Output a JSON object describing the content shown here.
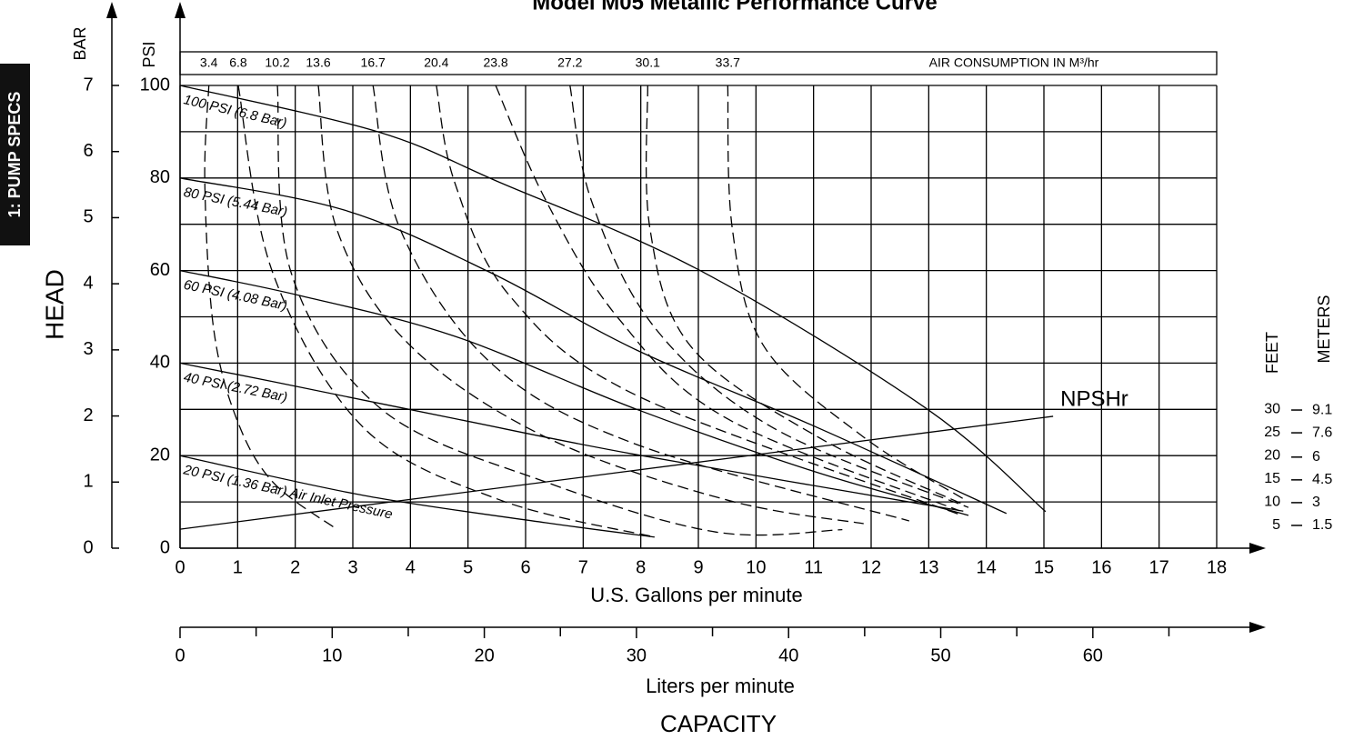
{
  "chart_data": {
    "type": "line",
    "title": "Model M05 Metallic Performance Curve",
    "tab_label": "1: PUMP SPECS",
    "x_label": "U.S. Gallons per minute",
    "x2_label": "Liters per minute",
    "capacity_label": "CAPACITY",
    "y_label": "HEAD",
    "y_axis_name": "PSI",
    "y2_axis_name": "BAR",
    "y3_axis_name": "FEET",
    "y4_axis_name": "METERS",
    "air_label": "AIR CONSUMPTION IN M³/hr",
    "xlim": [
      0,
      18
    ],
    "xticks": [
      0,
      1,
      2,
      3,
      4,
      5,
      6,
      7,
      8,
      9,
      10,
      11,
      12,
      13,
      14,
      15,
      16,
      17,
      18
    ],
    "ylim": [
      0,
      100
    ],
    "yticks": [
      0,
      20,
      40,
      60,
      80,
      100
    ],
    "yminor": [
      10,
      30,
      50,
      70,
      90
    ],
    "y2lim": [
      0,
      7
    ],
    "y2ticks": [
      0,
      1,
      2,
      3,
      4,
      5,
      6,
      7
    ],
    "x2lim": [
      0,
      68.14
    ],
    "x2ticks": [
      0,
      10,
      20,
      30,
      40,
      50,
      60
    ],
    "x2minor": [
      5,
      15,
      25,
      35,
      45,
      55,
      65
    ],
    "y3lim": [
      0,
      100
    ],
    "y3ticks": [
      5,
      10,
      15,
      20,
      25,
      30
    ],
    "y4lim": [
      0,
      30.48
    ],
    "y4ticks": [
      1.5,
      3,
      4.5,
      6,
      7.6,
      9.1
    ],
    "grid": true,
    "series": [
      {
        "name": "100 PSI (6.8 Bar)",
        "line_style": "solid",
        "color": "#000000",
        "x": [
          0,
          3.43,
          5.56,
          9.03,
          12.98,
          15.03
        ],
        "values": [
          100,
          90,
          79,
          60,
          30,
          7.9
        ]
      },
      {
        "name": "80 PSI (5.44 Bar)",
        "line_style": "solid",
        "color": "#000000",
        "x": [
          0,
          2.87,
          5.4,
          7.93,
          11.08,
          14.35
        ],
        "values": [
          80,
          73,
          59.5,
          42.8,
          26,
          7.5
        ]
      },
      {
        "name": "60 PSI (4.08 Bar)",
        "line_style": "solid",
        "color": "#000000",
        "x": [
          0,
          2.08,
          4.77,
          7.93,
          11.08,
          13.69
        ],
        "values": [
          60,
          54.6,
          45.8,
          30,
          16.3,
          7.1
        ]
      },
      {
        "name": "40 PSI (2.72 Bar)",
        "line_style": "solid",
        "color": "#000000",
        "x": [
          0,
          1.61,
          4.77,
          7.93,
          13.6
        ],
        "values": [
          40,
          36,
          28,
          20.2,
          8
        ]
      },
      {
        "name": "20 PSI (1.36 Bar) Air Inlet Pressure",
        "line_style": "solid",
        "color": "#000000",
        "x": [
          0,
          3.19,
          6.35,
          8.24
        ],
        "values": [
          20,
          11.4,
          5.5,
          2.4
        ]
      },
      {
        "name": "3.4",
        "line_style": "dashed",
        "color": "#000000",
        "x": [
          0.5,
          0.43,
          0.58,
          0.98,
          1.61,
          2.72
        ],
        "values": [
          100,
          79,
          47.7,
          28,
          14.3,
          4.1
        ]
      },
      {
        "name": "6.8",
        "line_style": "dashed",
        "color": "#000000",
        "x": [
          1.01,
          1.61,
          3.19,
          5.56,
          8.24
        ],
        "values": [
          100,
          59.5,
          26,
          10.4,
          2.4
        ]
      },
      {
        "name": "10.2",
        "line_style": "dashed",
        "color": "#000000",
        "x": [
          1.69,
          1.93,
          3.5,
          6.35,
          9.3,
          11.5
        ],
        "values": [
          100,
          59.5,
          30,
          14.3,
          3.5,
          4
        ]
      },
      {
        "name": "13.6",
        "line_style": "dashed",
        "color": "#000000",
        "x": [
          2.4,
          2.72,
          3.98,
          6.35,
          9.5,
          11.87
        ],
        "values": [
          100,
          69,
          44,
          24,
          10.4,
          5.3
        ]
      },
      {
        "name": "16.7",
        "line_style": "dashed",
        "color": "#000000",
        "x": [
          3.35,
          3.82,
          5.4,
          7.93,
          12.66
        ],
        "values": [
          100,
          69,
          40,
          22.4,
          5.9
        ]
      },
      {
        "name": "20.4",
        "line_style": "dashed",
        "color": "#000000",
        "x": [
          4.45,
          4.77,
          5.72,
          7.93,
          13.53
        ],
        "values": [
          100,
          79,
          54.6,
          33,
          7.3
        ]
      },
      {
        "name": "23.8",
        "line_style": "dashed",
        "color": "#000000",
        "x": [
          5.48,
          6.35,
          7.61,
          9.5,
          13.53
        ],
        "values": [
          100,
          75.2,
          49.7,
          28,
          8.1
        ]
      },
      {
        "name": "27.2",
        "line_style": "dashed",
        "color": "#000000",
        "x": [
          6.77,
          7.14,
          8.24,
          10.3,
          13.69
        ],
        "values": [
          100,
          75.2,
          47.7,
          26,
          8.8
        ]
      },
      {
        "name": "30.1",
        "line_style": "dashed",
        "color": "#000000",
        "x": [
          8.12,
          8.16,
          8.87,
          11.08,
          13.61
        ],
        "values": [
          100,
          69,
          43.6,
          24,
          9.4
        ]
      },
      {
        "name": "33.7",
        "line_style": "dashed",
        "color": "#000000",
        "x": [
          9.51,
          9.59,
          10.14,
          11.87,
          13.61
        ],
        "values": [
          100,
          69,
          43.6,
          24,
          10.6
        ]
      },
      {
        "name": "NPSHr",
        "line_style": "solid",
        "color": "#000000",
        "axis": "y3",
        "x": [
          0,
          15.16
        ],
        "values": [
          4.1,
          28.5
        ]
      }
    ]
  }
}
